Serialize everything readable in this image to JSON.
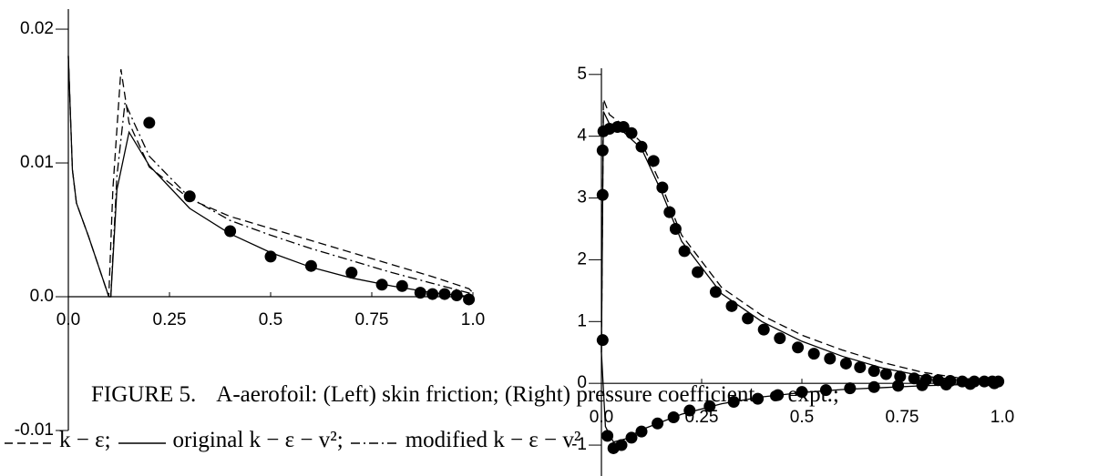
{
  "chart_data": [
    {
      "type": "line",
      "xlim": [
        0,
        1
      ],
      "xticks": [
        {
          "value": 0,
          "label": "0.0"
        },
        0.25,
        0.5,
        0.75,
        {
          "value": 1,
          "label": "1.0"
        }
      ],
      "ylim": [
        -0.01,
        0.0215
      ],
      "yticks": [
        {
          "value": 0.02,
          "label": "0.02"
        },
        {
          "value": 0.01,
          "label": "0.01"
        },
        {
          "value": 0,
          "label": "0.0"
        },
        {
          "value": -0.01,
          "label": "-0.01"
        }
      ],
      "series": [
        {
          "style": "dashed",
          "color": "#000000",
          "x": [
            0,
            0.01,
            0.02,
            0.05,
            0.08,
            0.1,
            0.11,
            0.13,
            0.15,
            0.2,
            0.3,
            0.4,
            0.5,
            0.6,
            0.7,
            0.8,
            0.9,
            0.99,
            1.0
          ],
          "values": [
            0.018,
            0.0095,
            0.007,
            0.0045,
            0.0018,
            0,
            0.008,
            0.017,
            0.013,
            0.0097,
            0.0073,
            0.006,
            0.0051,
            0.0042,
            0.0033,
            0.0024,
            0.0015,
            0.0006,
            0.0003
          ]
        },
        {
          "style": "solid",
          "color": "#000000",
          "x": [
            0,
            0.01,
            0.02,
            0.05,
            0.08,
            0.1,
            0.105,
            0.12,
            0.15,
            0.2,
            0.3,
            0.4,
            0.5,
            0.6,
            0.7,
            0.8,
            0.9,
            1.0
          ],
          "values": [
            0.018,
            0.0095,
            0.007,
            0.0045,
            0.0018,
            0,
            0,
            0.008,
            0.0123,
            0.0098,
            0.0066,
            0.0047,
            0.0033,
            0.0022,
            0.0014,
            0.0008,
            0.0003,
            0
          ]
        },
        {
          "style": "dashdot",
          "color": "#000000",
          "x": [
            0.1,
            0.105,
            0.12,
            0.14,
            0.2,
            0.3,
            0.4,
            0.5,
            0.6,
            0.7,
            0.8,
            0.9,
            1.0
          ],
          "values": [
            0,
            0,
            0.009,
            0.0145,
            0.0105,
            0.0074,
            0.0057,
            0.0046,
            0.0036,
            0.0027,
            0.0018,
            0.001,
            0.0002
          ]
        },
        {
          "style": "dots",
          "color": "#000000",
          "x": [
            0.2,
            0.3,
            0.4,
            0.5,
            0.6,
            0.7,
            0.775,
            0.825,
            0.87,
            0.9,
            0.93,
            0.96,
            0.99
          ],
          "values": [
            0.013,
            0.0075,
            0.0049,
            0.003,
            0.0023,
            0.0018,
            0.0009,
            0.0008,
            0.0003,
            0.0002,
            0.0002,
            0.0001,
            -0.0002
          ]
        }
      ]
    },
    {
      "type": "line",
      "xlim": [
        0,
        1
      ],
      "xticks": [
        {
          "value": 0,
          "label": "0.0"
        },
        0.25,
        0.5,
        0.75,
        {
          "value": 1,
          "label": "1.0"
        }
      ],
      "ylim": [
        -1.5,
        5.1
      ],
      "yticks": [
        5,
        4,
        3,
        2,
        1,
        0,
        -1
      ],
      "series": [
        {
          "style": "dashed",
          "color": "#000000",
          "x": [
            0,
            0.005,
            0.02,
            0.05,
            0.1,
            0.15,
            0.2,
            0.3,
            0.4,
            0.5,
            0.6,
            0.7,
            0.8,
            0.9,
            1.0
          ],
          "values": [
            0.5,
            4.6,
            4.35,
            4.2,
            3.9,
            3.2,
            2.4,
            1.55,
            1.1,
            0.78,
            0.54,
            0.34,
            0.18,
            0.08,
            0.03
          ]
        },
        {
          "style": "solid",
          "color": "#000000",
          "x": [
            0,
            0.005,
            0.02,
            0.05,
            0.1,
            0.15,
            0.2,
            0.3,
            0.4,
            0.5,
            0.6,
            0.7,
            0.8,
            0.9,
            1.0
          ],
          "values": [
            0.5,
            4.4,
            4.2,
            4.1,
            3.8,
            3.1,
            2.3,
            1.45,
            1.0,
            0.68,
            0.44,
            0.25,
            0.12,
            0.05,
            0.02
          ]
        },
        {
          "style": "solid",
          "color": "#000000",
          "x": [
            0,
            0.01,
            0.03,
            0.06,
            0.1,
            0.2,
            0.3,
            0.4,
            0.5,
            0.6,
            0.7,
            0.8,
            0.9,
            1.0
          ],
          "values": [
            0.5,
            -0.7,
            -0.95,
            -0.9,
            -0.75,
            -0.5,
            -0.33,
            -0.22,
            -0.15,
            -0.1,
            -0.07,
            -0.04,
            -0.02,
            0.02
          ]
        },
        {
          "style": "dots",
          "color": "#000000",
          "x": [
            0.003,
            0.003,
            0.003,
            0.005,
            0.02,
            0.04,
            0.055,
            0.075,
            0.1,
            0.13,
            0.152,
            0.17,
            0.185,
            0.207,
            0.24,
            0.285,
            0.325,
            0.365,
            0.405,
            0.445,
            0.49,
            0.53,
            0.57,
            0.61,
            0.645,
            0.68,
            0.71,
            0.745,
            0.78,
            0.81,
            0.84,
            0.87,
            0.9,
            0.93,
            0.955,
            0.975,
            0.99
          ],
          "values": [
            0.7,
            3.05,
            3.77,
            4.08,
            4.12,
            4.15,
            4.15,
            4.05,
            3.83,
            3.6,
            3.17,
            2.77,
            2.5,
            2.14,
            1.8,
            1.48,
            1.25,
            1.05,
            0.87,
            0.73,
            0.58,
            0.48,
            0.4,
            0.32,
            0.26,
            0.2,
            0.15,
            0.11,
            0.08,
            0.06,
            0.05,
            0.04,
            0.03,
            0.03,
            0.03,
            0.03,
            0.03
          ]
        },
        {
          "style": "dots",
          "color": "#000000",
          "x": [
            0.015,
            0.03,
            0.05,
            0.075,
            0.1,
            0.14,
            0.18,
            0.22,
            0.27,
            0.33,
            0.39,
            0.44,
            0.5,
            0.56,
            0.62,
            0.68,
            0.74,
            0.8,
            0.86,
            0.92,
            0.98
          ],
          "values": [
            -0.85,
            -1.05,
            -1.0,
            -0.88,
            -0.78,
            -0.65,
            -0.55,
            -0.44,
            -0.37,
            -0.3,
            -0.25,
            -0.19,
            -0.14,
            -0.11,
            -0.08,
            -0.06,
            -0.04,
            -0.03,
            -0.02,
            -0.01,
            0.0
          ]
        }
      ]
    }
  ],
  "caption": {
    "label": "FIGURE 5.",
    "text": "A-aerofoil: (Left) skin friction; (Right) pressure coefficient.",
    "legend": [
      {
        "style": "dots",
        "text": "expt.;"
      },
      {
        "style": "dashed",
        "text": "k − ε;"
      },
      {
        "style": "solid",
        "text": "original k − ε − v²;"
      },
      {
        "style": "dashdot",
        "text": "modified k − ε − v²"
      }
    ]
  }
}
